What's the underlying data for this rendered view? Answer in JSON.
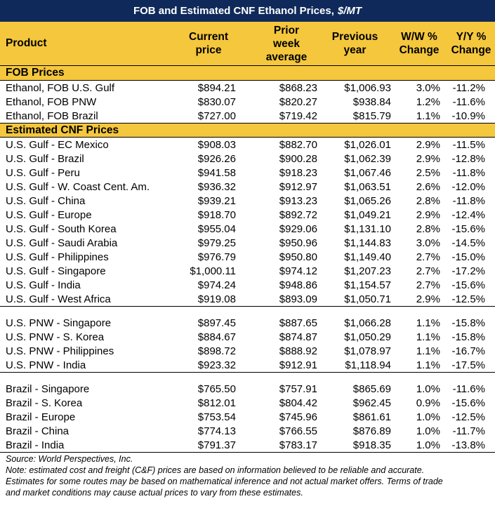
{
  "title": "FOB and Estimated CNF Ethanol Prices,",
  "title_unit": "$/MT",
  "headers": {
    "product": "Product",
    "current": [
      "Current",
      "price"
    ],
    "prior": [
      "Prior",
      "week",
      "average"
    ],
    "previous": [
      "Previous",
      "year"
    ],
    "ww": [
      "W/W %",
      "Change"
    ],
    "yy": [
      "Y/Y %",
      "Change"
    ]
  },
  "sections": {
    "fob": "FOB Prices",
    "cnf": "Estimated CNF Prices"
  },
  "fob_rows": [
    [
      "Ethanol, FOB U.S. Gulf",
      "$894.21",
      "$868.23",
      "$1,006.93",
      "3.0%",
      "-11.2%"
    ],
    [
      "Ethanol, FOB PNW",
      "$830.07",
      "$820.27",
      "$938.84",
      "1.2%",
      "-11.6%"
    ],
    [
      "Ethanol, FOB Brazil",
      "$727.00",
      "$719.42",
      "$815.79",
      "1.1%",
      "-10.9%"
    ]
  ],
  "gulf_rows": [
    [
      "U.S. Gulf - EC Mexico",
      "$908.03",
      "$882.70",
      "$1,026.01",
      "2.9%",
      "-11.5%"
    ],
    [
      "U.S. Gulf - Brazil",
      "$926.26",
      "$900.28",
      "$1,062.39",
      "2.9%",
      "-12.8%"
    ],
    [
      "U.S. Gulf - Peru",
      "$941.58",
      "$918.23",
      "$1,067.46",
      "2.5%",
      "-11.8%"
    ],
    [
      "U.S. Gulf - W. Coast Cent. Am.",
      "$936.32",
      "$912.97",
      "$1,063.51",
      "2.6%",
      "-12.0%"
    ],
    [
      "U.S. Gulf - China",
      "$939.21",
      "$913.23",
      "$1,065.26",
      "2.8%",
      "-11.8%"
    ],
    [
      "U.S. Gulf - Europe",
      "$918.70",
      "$892.72",
      "$1,049.21",
      "2.9%",
      "-12.4%"
    ],
    [
      "U.S. Gulf - South Korea",
      "$955.04",
      "$929.06",
      "$1,131.10",
      "2.8%",
      "-15.6%"
    ],
    [
      "U.S. Gulf - Saudi Arabia",
      "$979.25",
      "$950.96",
      "$1,144.83",
      "3.0%",
      "-14.5%"
    ],
    [
      "U.S. Gulf - Philippines",
      "$976.79",
      "$950.80",
      "$1,149.40",
      "2.7%",
      "-15.0%"
    ],
    [
      "U.S. Gulf - Singapore",
      "$1,000.11",
      "$974.12",
      "$1,207.23",
      "2.7%",
      "-17.2%"
    ],
    [
      "U.S. Gulf - India",
      "$974.24",
      "$948.86",
      "$1,154.57",
      "2.7%",
      "-15.6%"
    ],
    [
      "U.S. Gulf - West Africa",
      "$919.08",
      "$893.09",
      "$1,050.71",
      "2.9%",
      "-12.5%"
    ]
  ],
  "pnw_rows": [
    [
      "U.S. PNW - Singapore",
      "$897.45",
      "$887.65",
      "$1,066.28",
      "1.1%",
      "-15.8%"
    ],
    [
      "U.S. PNW - S. Korea",
      "$884.67",
      "$874.87",
      "$1,050.29",
      "1.1%",
      "-15.8%"
    ],
    [
      "U.S. PNW - Philippines",
      "$898.72",
      "$888.92",
      "$1,078.97",
      "1.1%",
      "-16.7%"
    ],
    [
      "U.S. PNW - India",
      "$923.32",
      "$912.91",
      "$1,118.94",
      "1.1%",
      "-17.5%"
    ]
  ],
  "brazil_rows": [
    [
      "Brazil - Singapore",
      "$765.50",
      "$757.91",
      "$865.69",
      "1.0%",
      "-11.6%"
    ],
    [
      "Brazil - S. Korea",
      "$812.01",
      "$804.42",
      "$962.45",
      "0.9%",
      "-15.6%"
    ],
    [
      "Brazil - Europe",
      "$753.54",
      "$745.96",
      "$861.61",
      "1.0%",
      "-12.5%"
    ],
    [
      "Brazil - China",
      "$774.13",
      "$766.55",
      "$876.89",
      "1.0%",
      "-11.7%"
    ],
    [
      "Brazil - India",
      "$791.37",
      "$783.17",
      "$918.35",
      "1.0%",
      "-13.8%"
    ]
  ],
  "notes": [
    "Source: World Perspectives, Inc.",
    "Note: estimated cost and freight (C&F) prices are based on information believed to be reliable and accurate.",
    "Estimates for some routes may be based on mathematical inference and not actual market offers. Terms of trade",
    "and market conditions may cause actual prices to vary from these estimates."
  ],
  "colors": {
    "title_bg": "#0f2a5a",
    "header_bg": "#f5c73d"
  }
}
